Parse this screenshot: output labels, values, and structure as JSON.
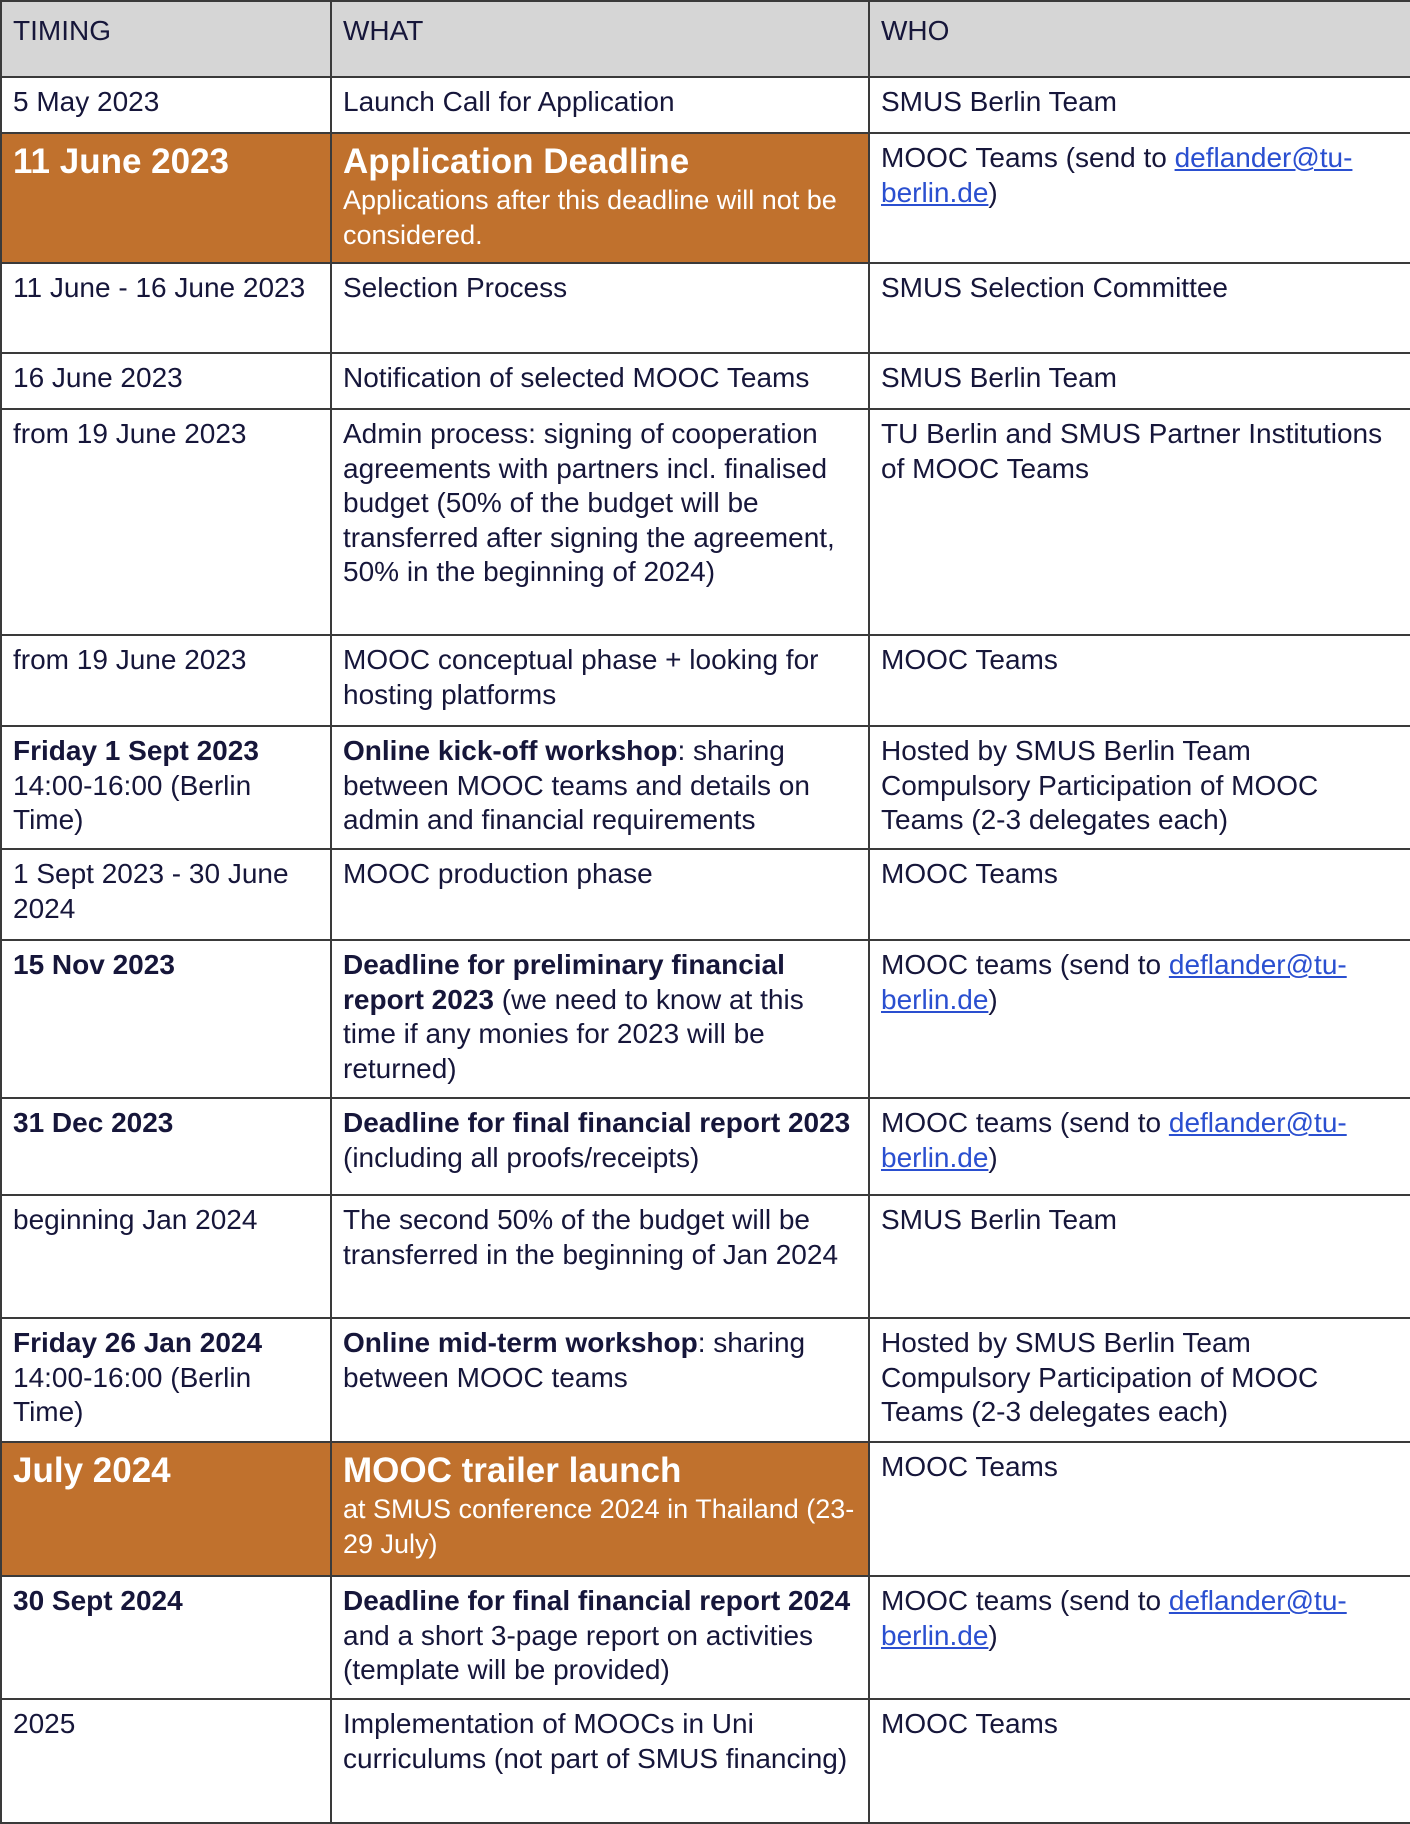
{
  "header": {
    "timing": "TIMING",
    "what": "WHAT",
    "who": "WHO"
  },
  "colors": {
    "highlight": "#c0712d",
    "header_bg": "#d6d6d6",
    "text": "#16163a",
    "link": "#2a4fd0"
  },
  "rows": [
    {
      "highlight": false,
      "timing": [
        {
          "t": "5 May 2023",
          "s": "n"
        }
      ],
      "what": [
        {
          "t": "Launch Call for Application",
          "s": "n"
        }
      ],
      "who": [
        {
          "t": "SMUS Berlin Team",
          "s": "n"
        }
      ]
    },
    {
      "highlight": true,
      "timing": [
        {
          "t": "11 June 2023",
          "s": "big"
        }
      ],
      "what": [
        {
          "t": "Application Deadline",
          "s": "big"
        },
        {
          "t": "",
          "s": "br"
        },
        {
          "t": "Applications after this deadline will not be considered.",
          "s": "small"
        }
      ],
      "who": [
        {
          "t": "MOOC Teams (send to ",
          "s": "n"
        },
        {
          "t": "deflander@tu-berlin.de",
          "s": "link"
        },
        {
          "t": ")",
          "s": "n"
        }
      ]
    },
    {
      "highlight": false,
      "timing": [
        {
          "t": "11 June - 16 June 2023",
          "s": "n"
        }
      ],
      "what": [
        {
          "t": "Selection Process",
          "s": "n"
        }
      ],
      "who": [
        {
          "t": "SMUS Selection Committee",
          "s": "n"
        }
      ]
    },
    {
      "highlight": false,
      "timing": [
        {
          "t": "16 June 2023",
          "s": "n"
        }
      ],
      "what": [
        {
          "t": "Notification of selected MOOC Teams",
          "s": "n"
        }
      ],
      "who": [
        {
          "t": "SMUS Berlin Team",
          "s": "n"
        }
      ]
    },
    {
      "highlight": false,
      "timing": [
        {
          "t": "from 19 June 2023",
          "s": "n"
        }
      ],
      "what": [
        {
          "t": "Admin process: signing of cooperation agreements with partners incl. finalised budget (50% of the budget will be transferred after signing the agreement, 50% in the beginning of 2024)",
          "s": "n"
        }
      ],
      "who": [
        {
          "t": "TU Berlin and SMUS Partner Institutions of MOOC Teams",
          "s": "n"
        }
      ]
    },
    {
      "highlight": false,
      "timing": [
        {
          "t": "from 19 June 2023",
          "s": "n"
        }
      ],
      "what": [
        {
          "t": "MOOC conceptual phase + looking for hosting platforms",
          "s": "n"
        }
      ],
      "who": [
        {
          "t": "MOOC Teams",
          "s": "n"
        }
      ]
    },
    {
      "highlight": false,
      "timing": [
        {
          "t": "Friday 1 Sept 2023",
          "s": "b"
        },
        {
          "t": "",
          "s": "br"
        },
        {
          "t": "14:00-16:00 (Berlin Time)",
          "s": "n"
        }
      ],
      "what": [
        {
          "t": "Online kick-off workshop",
          "s": "b"
        },
        {
          "t": ": sharing between MOOC teams and details on admin and financial requirements",
          "s": "n"
        }
      ],
      "who": [
        {
          "t": "Hosted by SMUS Berlin Team",
          "s": "n"
        },
        {
          "t": "",
          "s": "br"
        },
        {
          "t": "Compulsory Participation of MOOC Teams (2-3 delegates each)",
          "s": "n"
        }
      ]
    },
    {
      "highlight": false,
      "timing": [
        {
          "t": "1 Sept 2023 - 30 June 2024",
          "s": "n"
        }
      ],
      "what": [
        {
          "t": "MOOC production phase",
          "s": "n"
        }
      ],
      "who": [
        {
          "t": "MOOC Teams",
          "s": "n"
        }
      ]
    },
    {
      "highlight": false,
      "timing": [
        {
          "t": "15 Nov 2023",
          "s": "b"
        }
      ],
      "what": [
        {
          "t": "Deadline for preliminary financial report 2023",
          "s": "b"
        },
        {
          "t": " (we need to know at this time if any monies for 2023 will be returned)",
          "s": "n"
        }
      ],
      "who": [
        {
          "t": "MOOC teams (send to ",
          "s": "n"
        },
        {
          "t": "deflander@tu-berlin.de",
          "s": "link"
        },
        {
          "t": ")",
          "s": "n"
        }
      ]
    },
    {
      "highlight": false,
      "timing": [
        {
          "t": "31 Dec 2023",
          "s": "b"
        }
      ],
      "what": [
        {
          "t": "Deadline for final financial report 2023",
          "s": "b"
        },
        {
          "t": " (including all proofs/receipts)",
          "s": "n"
        }
      ],
      "who": [
        {
          "t": "MOOC teams (send to ",
          "s": "n"
        },
        {
          "t": "deflander@tu-berlin.de",
          "s": "link"
        },
        {
          "t": ")",
          "s": "n"
        }
      ]
    },
    {
      "highlight": false,
      "timing": [
        {
          "t": "beginning Jan 2024",
          "s": "n"
        }
      ],
      "what": [
        {
          "t": "The second 50% of the budget will be transferred in the beginning of Jan 2024",
          "s": "n"
        }
      ],
      "who": [
        {
          "t": "SMUS Berlin Team",
          "s": "n"
        }
      ]
    },
    {
      "highlight": false,
      "timing": [
        {
          "t": "Friday 26 Jan 2024",
          "s": "b"
        },
        {
          "t": "",
          "s": "br"
        },
        {
          "t": "14:00-16:00 (Berlin Time)",
          "s": "n"
        }
      ],
      "what": [
        {
          "t": "Online mid-term workshop",
          "s": "b"
        },
        {
          "t": ": sharing between MOOC teams",
          "s": "n"
        }
      ],
      "who": [
        {
          "t": "Hosted by SMUS Berlin Team",
          "s": "n"
        },
        {
          "t": "",
          "s": "br"
        },
        {
          "t": "Compulsory Participation of MOOC Teams (2-3 delegates each)",
          "s": "n"
        }
      ]
    },
    {
      "highlight": true,
      "timing": [
        {
          "t": "July 2024",
          "s": "big"
        }
      ],
      "what": [
        {
          "t": "MOOC trailer launch",
          "s": "big"
        },
        {
          "t": "",
          "s": "br"
        },
        {
          "t": "at SMUS conference 2024 in Thailand (23-29 July)",
          "s": "small"
        }
      ],
      "who": [
        {
          "t": "MOOC Teams",
          "s": "n"
        }
      ]
    },
    {
      "highlight": false,
      "timing": [
        {
          "t": "30 Sept 2024",
          "s": "b"
        }
      ],
      "what": [
        {
          "t": "Deadline for final financial report 2024",
          "s": "b"
        },
        {
          "t": " and a short 3-page report on activities (template will be provided)",
          "s": "n"
        }
      ],
      "who": [
        {
          "t": "MOOC teams (send to ",
          "s": "n"
        },
        {
          "t": "deflander@tu-berlin.de",
          "s": "link"
        },
        {
          "t": ")",
          "s": "n"
        }
      ]
    },
    {
      "highlight": false,
      "timing": [
        {
          "t": "2025",
          "s": "n"
        }
      ],
      "what": [
        {
          "t": "Implementation of MOOCs in Uni curriculums (not part of SMUS financing)",
          "s": "n"
        }
      ],
      "who": [
        {
          "t": "MOOC Teams",
          "s": "n"
        }
      ]
    }
  ]
}
